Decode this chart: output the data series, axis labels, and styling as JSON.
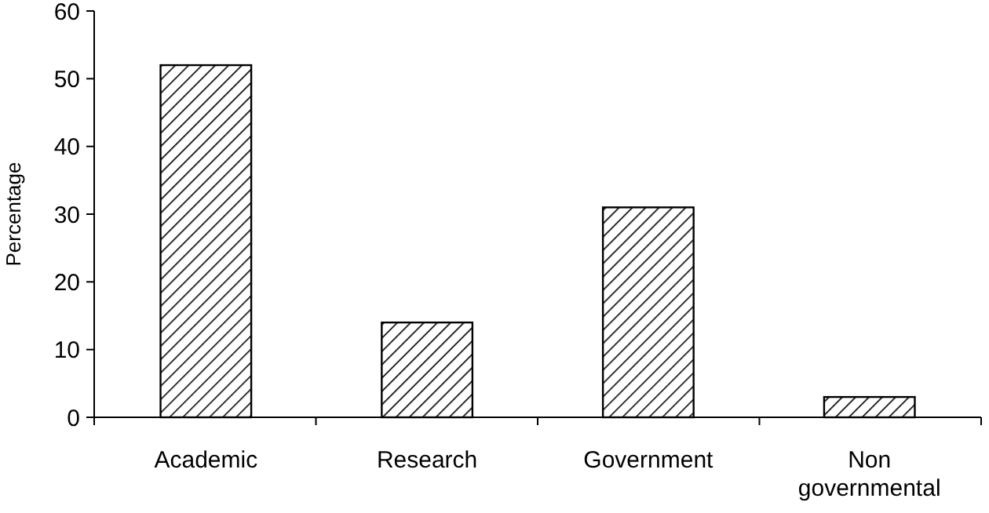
{
  "chart_data": {
    "type": "bar",
    "ylabel": "Percentage",
    "categories": [
      "Academic",
      "Research",
      "Government",
      "Non governmental"
    ],
    "values": [
      52,
      14,
      31,
      3
    ],
    "color": "#000000",
    "ylim": [
      0,
      60
    ],
    "yticks": [
      0,
      10,
      20,
      30,
      40,
      50,
      60
    ],
    "grid": false
  }
}
